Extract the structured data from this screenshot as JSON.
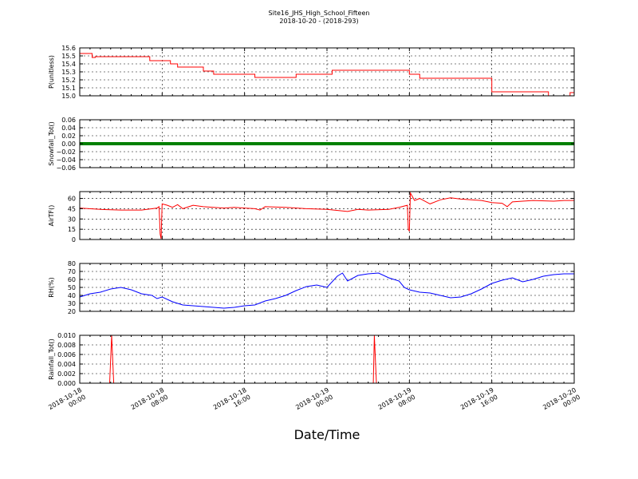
{
  "title": "Site16_JHS_High_School_Fifteen",
  "subtitle": "2018-10-20 - (2018-293)",
  "xlabel": "Date/Time",
  "x_ticks": [
    [
      "2018-10-18",
      "00:00"
    ],
    [
      "2018-10-18",
      "08:00"
    ],
    [
      "2018-10-18",
      "16:00"
    ],
    [
      "2018-10-19",
      "00:00"
    ],
    [
      "2018-10-19",
      "08:00"
    ],
    [
      "2018-10-19",
      "16:00"
    ],
    [
      "2018-10-20",
      "00:00"
    ]
  ],
  "chart_data": [
    {
      "type": "line",
      "ylabel": "P(unitless)",
      "ylim": [
        15.0,
        15.6
      ],
      "yticks": [
        "15.0",
        "15.1",
        "15.2",
        "15.3",
        "15.4",
        "15.5",
        "15.6"
      ],
      "x_unit": "hours since 2018-10-18 00:00",
      "xlim": [
        0,
        48
      ],
      "grid": true,
      "series": [
        {
          "color": "#ff0000",
          "step": true,
          "x": [
            0,
            1.2,
            1.5,
            6.8,
            7.0,
            8.8,
            9.5,
            12.0,
            13.0,
            17.0,
            20.0,
            21.0,
            24.5,
            32.0,
            33.0,
            40.0,
            44.5,
            45.5,
            46.6,
            47.6,
            48
          ],
          "y": [
            15.53,
            15.48,
            15.49,
            15.44,
            15.44,
            15.4,
            15.36,
            15.31,
            15.27,
            15.23,
            15.23,
            15.27,
            15.32,
            15.27,
            15.22,
            15.05,
            15.05,
            15.0,
            15.0,
            15.04,
            15.04
          ]
        }
      ]
    },
    {
      "type": "scatter",
      "ylabel": "Snowfall_Tot()",
      "ylim": [
        -0.06,
        0.06
      ],
      "yticks": [
        "−0.06",
        "−0.04",
        "−0.02",
        "0.00",
        "0.02",
        "0.04",
        "0.06"
      ],
      "x_unit": "hours since 2018-10-18 00:00",
      "xlim": [
        0,
        48
      ],
      "grid": true,
      "series": [
        {
          "color": "#008000",
          "constant": 0.0,
          "x_range": [
            0,
            48
          ]
        }
      ]
    },
    {
      "type": "line",
      "ylabel": "AirTF()",
      "ylim": [
        0,
        70
      ],
      "yticks": [
        "0",
        "15",
        "30",
        "45",
        "60"
      ],
      "ytick_values": [
        0,
        15,
        30,
        45,
        60
      ],
      "x_unit": "hours since 2018-10-18 00:00",
      "xlim": [
        0,
        48
      ],
      "grid": true,
      "series": [
        {
          "color": "#ff0000",
          "x": [
            0,
            2,
            4,
            6,
            7.5,
            7.7,
            7.8,
            7.9,
            8.0,
            8.5,
            9.0,
            9.5,
            10.0,
            11.0,
            12.0,
            13.0,
            14.0,
            15.0,
            16.0,
            17.0,
            17.5,
            18.0,
            20.0,
            22.0,
            24.0,
            26.0,
            27.0,
            28.0,
            30.0,
            31.0,
            31.8,
            31.9,
            32.0,
            32.1,
            32.5,
            33.0,
            34.0,
            35.0,
            36.0,
            37.0,
            38.0,
            39.0,
            40.0,
            41.0,
            41.5,
            42.0,
            44.0,
            46.0,
            47.0,
            48.0
          ],
          "y": [
            46,
            44,
            43,
            43,
            46,
            48,
            8,
            1,
            52,
            50,
            47,
            51,
            45,
            50,
            48,
            47,
            46,
            47,
            46,
            45,
            43,
            48,
            47,
            45,
            44,
            41,
            44,
            43,
            44,
            47,
            50,
            15,
            12,
            68,
            57,
            60,
            52,
            58,
            61,
            59,
            58,
            57,
            54,
            53,
            48,
            55,
            57,
            56,
            57,
            57
          ]
        }
      ]
    },
    {
      "type": "line",
      "ylabel": "RH(%)",
      "ylim": [
        20,
        80
      ],
      "yticks": [
        "20",
        "30",
        "40",
        "50",
        "60",
        "70",
        "80"
      ],
      "x_unit": "hours since 2018-10-18 00:00",
      "xlim": [
        0,
        48
      ],
      "grid": true,
      "series": [
        {
          "color": "#0000ff",
          "x": [
            0,
            1,
            2,
            3,
            4,
            5,
            6,
            7,
            7.5,
            8,
            9,
            10,
            11,
            12,
            13,
            14,
            15,
            16,
            17,
            18,
            19,
            20,
            21,
            22,
            23,
            24,
            25,
            25.5,
            26,
            27,
            28,
            29,
            30,
            31,
            31.5,
            32,
            33,
            34,
            35,
            36,
            37,
            38,
            39,
            40,
            41,
            42,
            43,
            44,
            45,
            46,
            47,
            48
          ],
          "y": [
            38,
            42,
            44,
            48,
            50,
            47,
            42,
            40,
            36,
            38,
            32,
            28,
            27,
            26,
            25,
            24,
            25,
            27,
            28,
            33,
            36,
            40,
            46,
            51,
            53,
            50,
            64,
            68,
            58,
            65,
            67,
            68,
            62,
            58,
            50,
            47,
            44,
            43,
            40,
            37,
            38,
            42,
            48,
            55,
            59,
            62,
            57,
            60,
            64,
            66,
            67,
            67
          ]
        }
      ]
    },
    {
      "type": "line",
      "ylabel": "Rainfall_Tot()",
      "ylim": [
        0.0,
        0.01
      ],
      "yticks": [
        "0.000",
        "0.002",
        "0.004",
        "0.006",
        "0.008",
        "0.010"
      ],
      "x_unit": "hours since 2018-10-18 00:00",
      "xlim": [
        0,
        48
      ],
      "grid": true,
      "series": [
        {
          "color": "#ff0000",
          "x": [
            0,
            2.9,
            3.1,
            3.3,
            28.5,
            28.6,
            28.8,
            48
          ],
          "y": [
            0,
            0,
            0.01,
            0,
            0,
            0.01,
            0,
            0
          ]
        }
      ]
    }
  ]
}
